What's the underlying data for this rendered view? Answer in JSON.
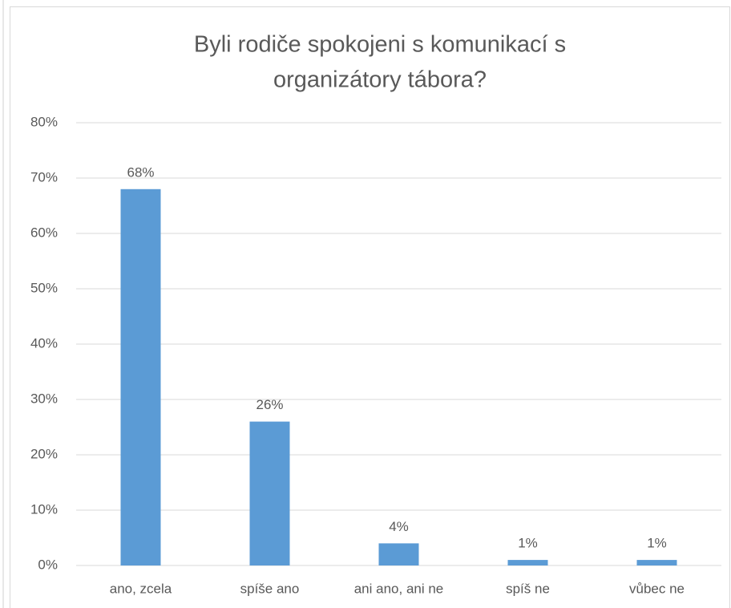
{
  "chart_data": {
    "type": "bar",
    "title": [
      "Byli rodiče spokojeni s komunikací s",
      "organizátory tábora?"
    ],
    "categories": [
      "ano, zcela",
      "spíše ano",
      "ani ano, ani ne",
      "spíš ne",
      "vůbec ne"
    ],
    "values": [
      68,
      26,
      4,
      1,
      1
    ],
    "value_labels": [
      "68%",
      "26%",
      "4%",
      "1%",
      "1%"
    ],
    "color": "#5b9bd5",
    "ylim": [
      0,
      80
    ],
    "yticks": [
      {
        "value": 0,
        "label": "0%"
      },
      {
        "value": 10,
        "label": "10%"
      },
      {
        "value": 20,
        "label": "20%"
      },
      {
        "value": 30,
        "label": "30%"
      },
      {
        "value": 40,
        "label": "40%"
      },
      {
        "value": 50,
        "label": "50%"
      },
      {
        "value": 60,
        "label": "60%"
      },
      {
        "value": 70,
        "label": "70%"
      },
      {
        "value": 80,
        "label": "80%"
      }
    ],
    "grid": true
  }
}
